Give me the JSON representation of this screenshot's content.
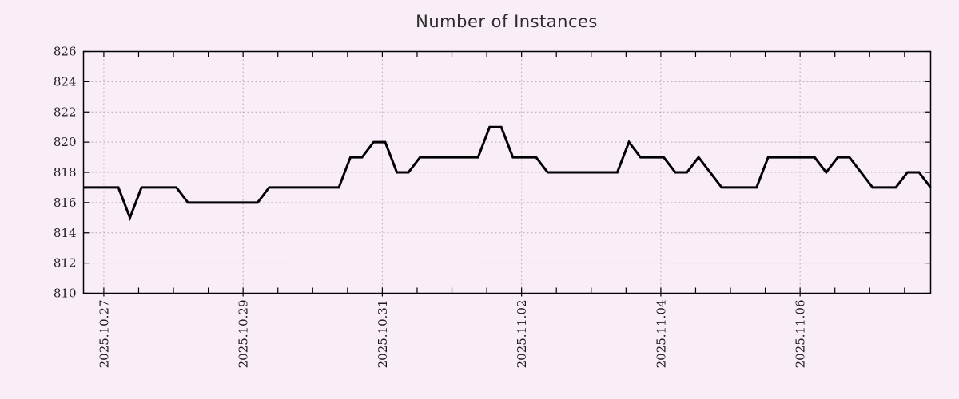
{
  "title": "Number of Instances",
  "chart_data": {
    "type": "line",
    "title": "Number of Instances",
    "x_axis": {
      "tick_labels": [
        "2025.10.27",
        "2025.10.29",
        "2025.10.31",
        "2025.11.02",
        "2025.11.04",
        "2025.11.06"
      ],
      "tick_label_offset_hours": [
        7,
        55,
        103,
        151,
        199,
        247
      ],
      "minor_tick_start_hours": 7,
      "minor_tick_interval_hours": 12,
      "total_span_hours": 292
    },
    "y_axis": {
      "tick_labels": [
        "810",
        "812",
        "814",
        "816",
        "818",
        "820",
        "822",
        "824",
        "826"
      ],
      "tick_values": [
        810,
        812,
        814,
        816,
        818,
        820,
        822,
        824,
        826
      ],
      "range": [
        810,
        826
      ]
    },
    "series": [
      {
        "name": "Number of Instances",
        "sample_interval_hours": 4,
        "values": [
          817,
          817,
          817,
          817,
          815,
          817,
          817,
          817,
          817,
          816,
          816,
          816,
          816,
          816,
          816,
          816,
          817,
          817,
          817,
          817,
          817,
          817,
          817,
          819,
          819,
          820,
          820,
          818,
          818,
          819,
          819,
          819,
          819,
          819,
          819,
          821,
          821,
          819,
          819,
          819,
          818,
          818,
          818,
          818,
          818,
          818,
          818,
          820,
          819,
          819,
          819,
          818,
          818,
          819,
          818,
          817,
          817,
          817,
          817,
          819,
          819,
          819,
          819,
          819,
          818,
          819,
          819,
          818,
          817,
          817,
          817,
          818,
          818,
          817
        ]
      }
    ],
    "grid": true,
    "legend": false,
    "colors": {
      "line": "#000000",
      "grid": "#b3aab3",
      "axis": "#000000",
      "background": "#f9edf8",
      "text": "#1c1c1c"
    }
  }
}
